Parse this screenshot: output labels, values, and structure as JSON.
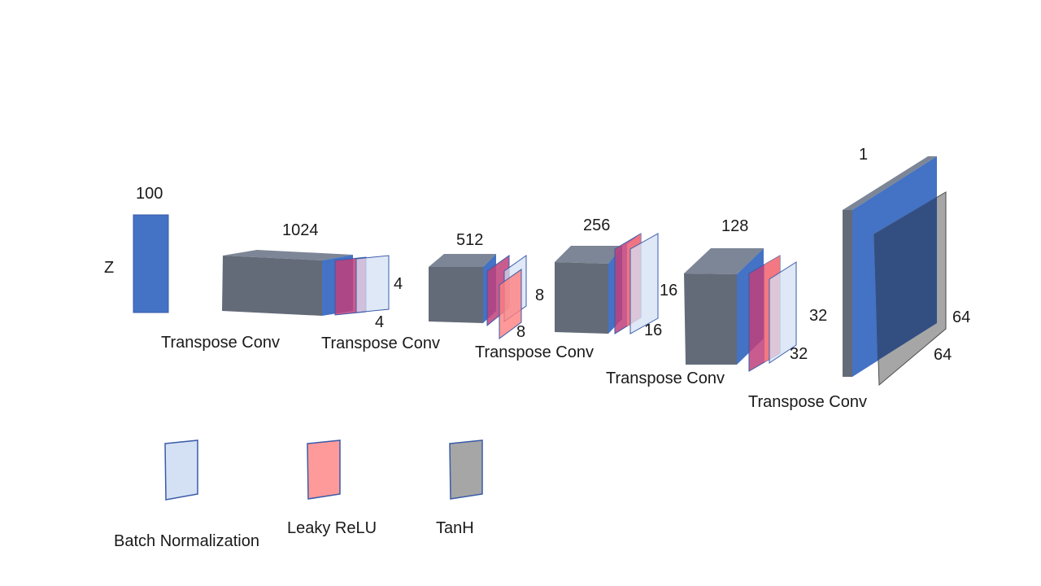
{
  "colors": {
    "block_front": "#636b78",
    "block_top": "#7d8696",
    "block_side_blue": "#4472c4",
    "batch_norm": "#d4e0f4",
    "leaky_relu": "#ff8080",
    "tanh": "#a6a6a6",
    "outline": "#3a5ba8"
  },
  "diagram": {
    "z_label": "Z",
    "z_size": "100",
    "layers": [
      {
        "channels": "1024",
        "dim_a": "4",
        "dim_b": "4",
        "op": "Transpose Conv"
      },
      {
        "channels": "512",
        "dim_a": "8",
        "dim_b": "8",
        "op": "Transpose Conv"
      },
      {
        "channels": "256",
        "dim_a": "16",
        "dim_b": "16",
        "op": "Transpose Conv"
      },
      {
        "channels": "128",
        "dim_a": "32",
        "dim_b": "32",
        "op": "Transpose Conv"
      }
    ],
    "first_op": "Transpose Conv",
    "output": {
      "channels": "1",
      "dim_a": "64",
      "dim_b": "64"
    }
  },
  "legend": [
    {
      "label": "Batch Normalization",
      "color_key": "batch_norm"
    },
    {
      "label": "Leaky ReLU",
      "color_key": "leaky_relu"
    },
    {
      "label": "TanH",
      "color_key": "tanh"
    }
  ]
}
